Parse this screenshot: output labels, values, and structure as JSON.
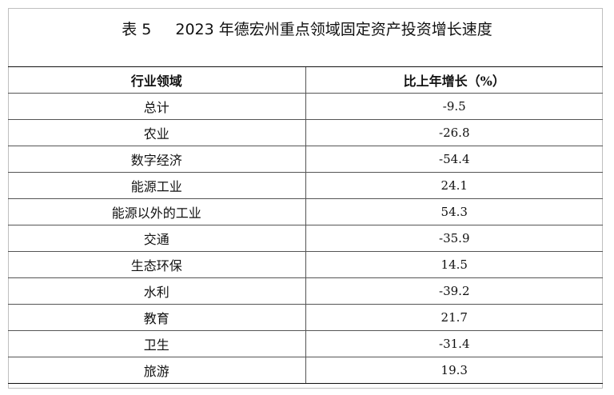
{
  "table": {
    "number": "表 5",
    "title": "2023 年德宏州重点领域固定资产投资增长速度",
    "headers": [
      "行业领域",
      "比上年增长（%）"
    ],
    "rows": [
      [
        "总计",
        "-9.5"
      ],
      [
        "农业",
        "-26.8"
      ],
      [
        "数字经济",
        "-54.4"
      ],
      [
        "能源工业",
        "24.1"
      ],
      [
        "能源以外的工业",
        "54.3"
      ],
      [
        "交通",
        "-35.9"
      ],
      [
        "生态环保",
        "14.5"
      ],
      [
        "水利",
        "-39.2"
      ],
      [
        "教育",
        "21.7"
      ],
      [
        "卫生",
        "-31.4"
      ],
      [
        "旅游",
        "19.3"
      ]
    ]
  }
}
